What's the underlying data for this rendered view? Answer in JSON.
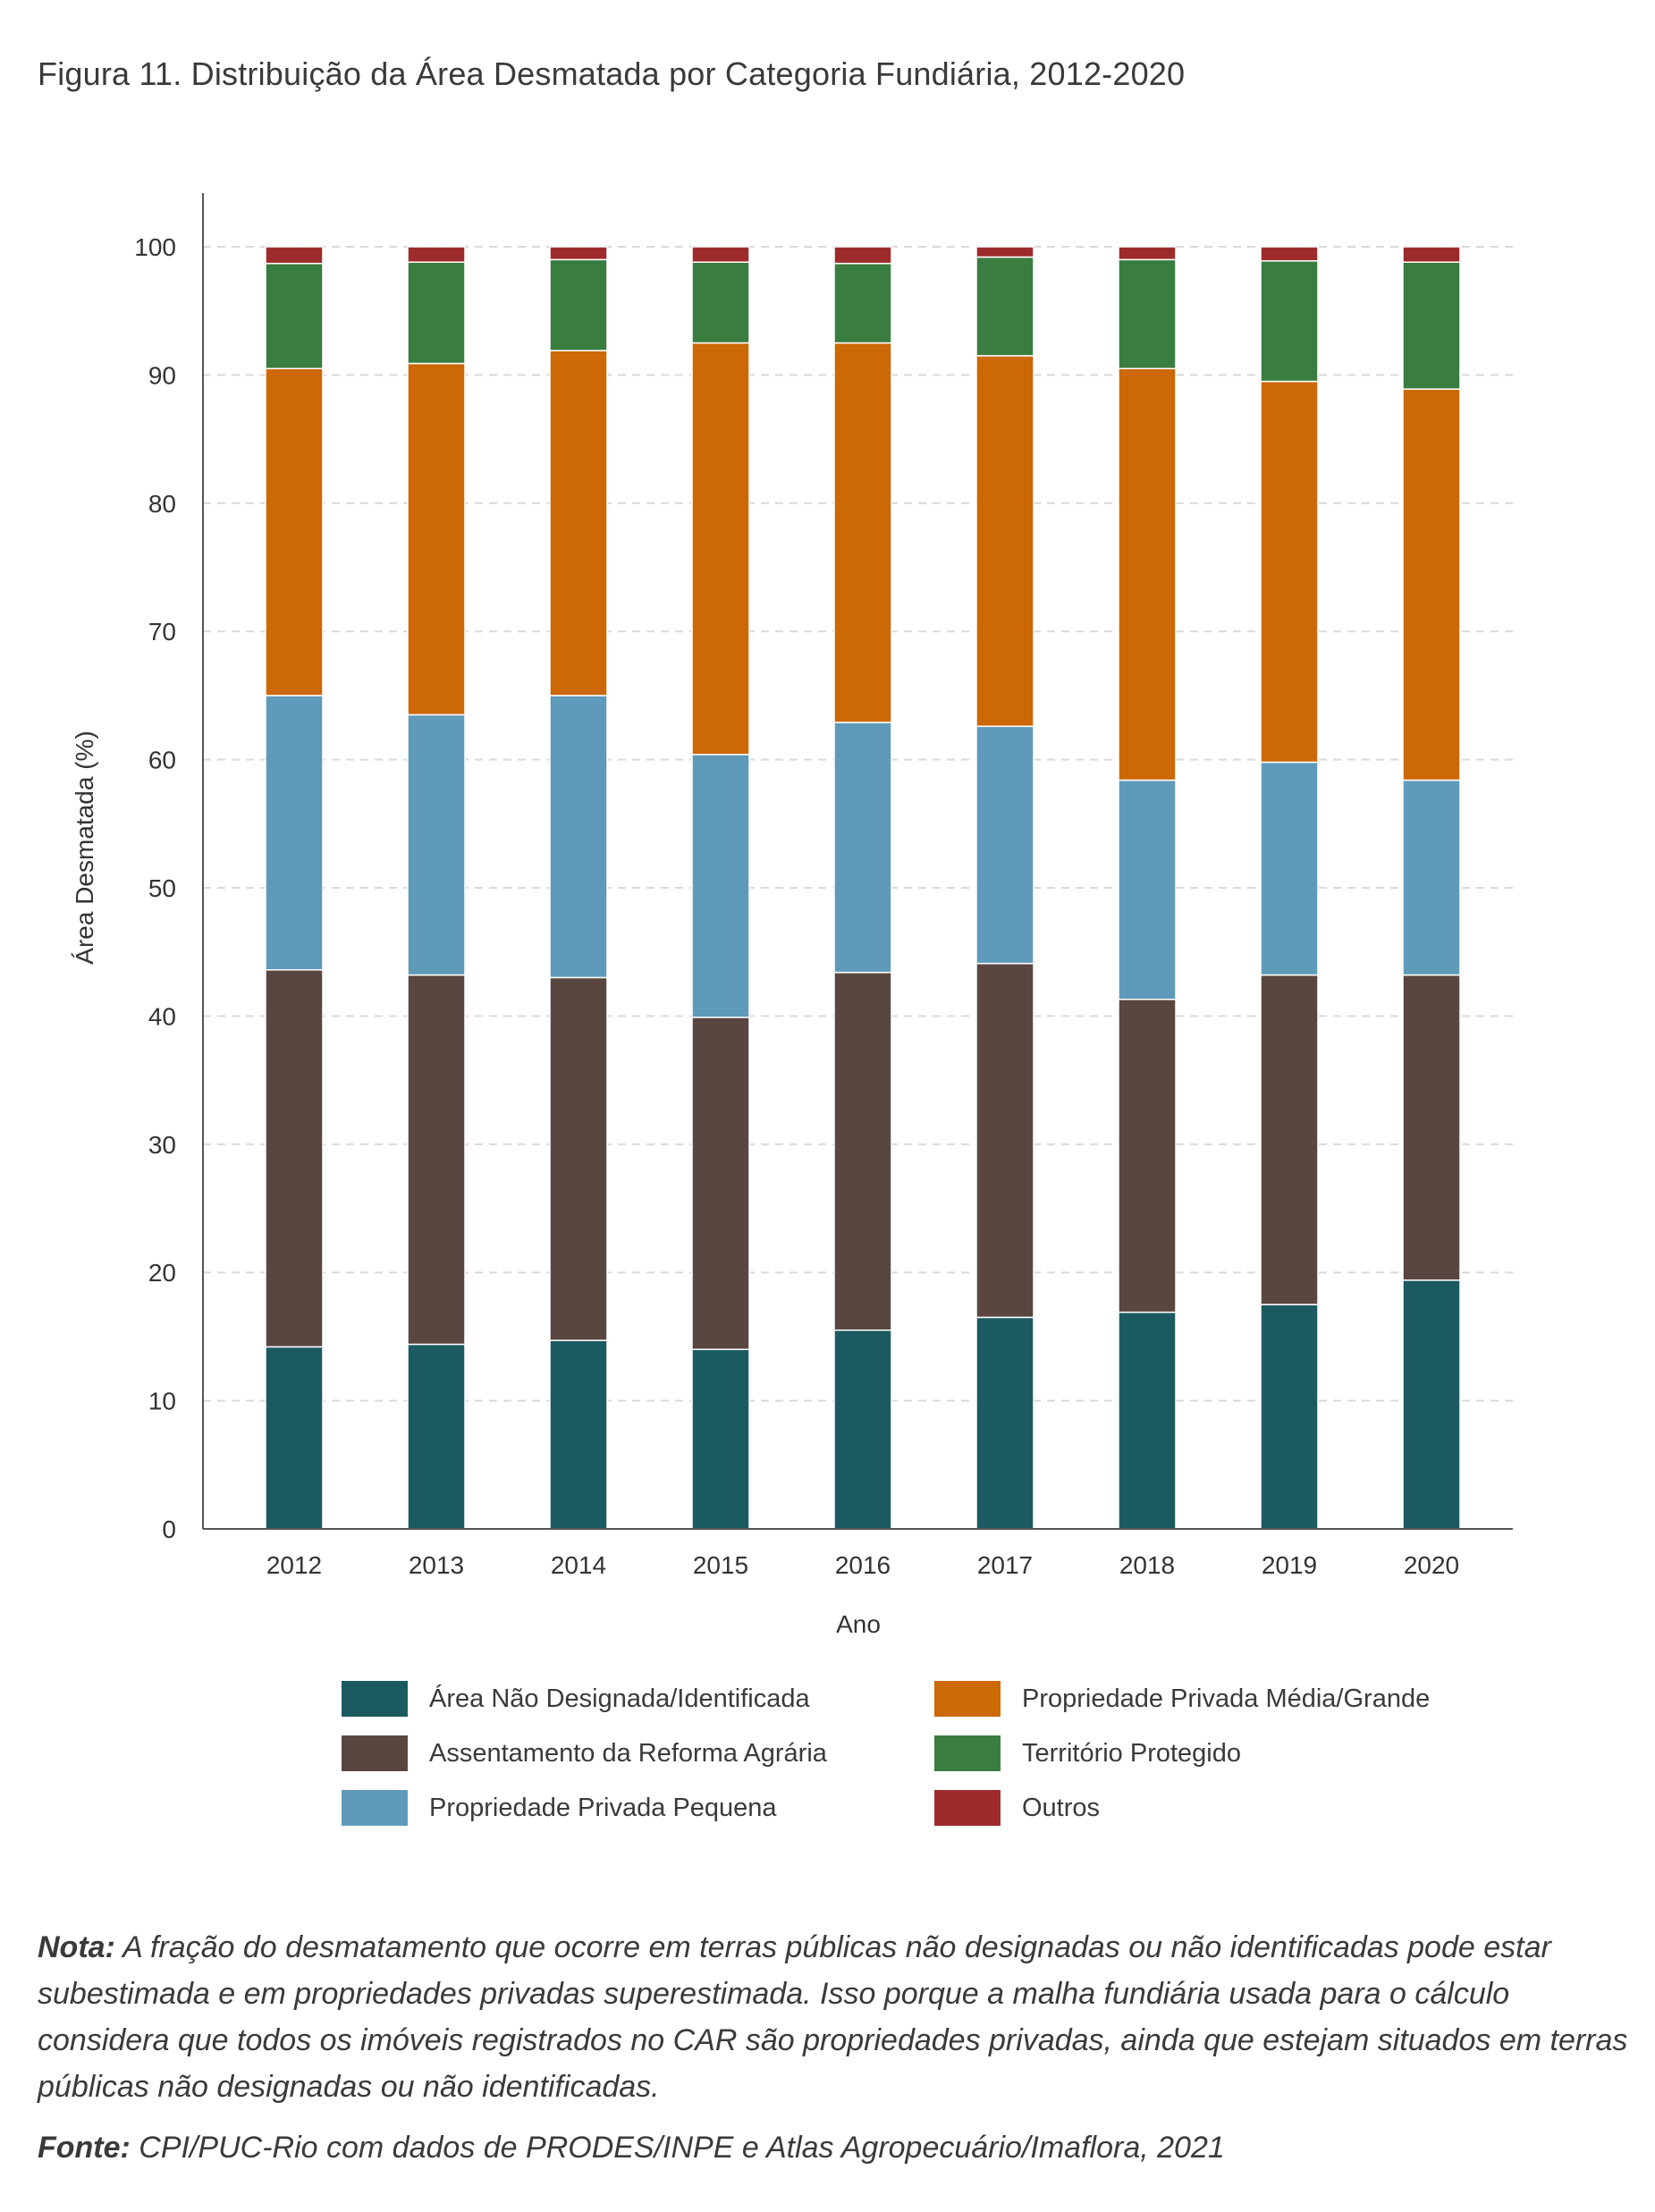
{
  "title": "Figura 11. Distribuição da Área Desmatada por Categoria Fundiária, 2012-2020",
  "chart_data": {
    "type": "bar",
    "stacked": true,
    "categories": [
      "2012",
      "2013",
      "2014",
      "2015",
      "2016",
      "2017",
      "2018",
      "2019",
      "2020"
    ],
    "xlabel": "Ano",
    "ylabel": "Área Desmatada (%)",
    "ylim": [
      0,
      100
    ],
    "yticks": [
      0,
      10,
      20,
      30,
      40,
      50,
      60,
      70,
      80,
      90,
      100
    ],
    "grid": true,
    "legend_position": "bottom",
    "series": [
      {
        "name": "Área Não Designada/Identificada",
        "color": "#1c5a62",
        "values": [
          14.2,
          14.4,
          14.7,
          14.0,
          15.5,
          16.5,
          16.9,
          17.5,
          19.4
        ]
      },
      {
        "name": "Assentamento da Reforma Agrária",
        "color": "#5a4640",
        "values": [
          29.4,
          28.8,
          28.3,
          25.9,
          27.9,
          27.6,
          24.4,
          25.7,
          23.8
        ]
      },
      {
        "name": "Propriedade Privada Pequena",
        "color": "#5f9aba",
        "values": [
          21.4,
          20.3,
          22.0,
          20.5,
          19.5,
          18.5,
          17.1,
          16.6,
          15.2
        ]
      },
      {
        "name": "Propriedade Privada Média/Grande",
        "color": "#cc6805",
        "values": [
          25.5,
          27.4,
          26.9,
          32.1,
          29.6,
          28.9,
          32.1,
          29.7,
          30.5
        ]
      },
      {
        "name": "Território Protegido",
        "color": "#3a7d40",
        "values": [
          8.2,
          7.9,
          7.1,
          6.3,
          6.2,
          7.7,
          8.5,
          9.4,
          9.9
        ]
      },
      {
        "name": "Outros",
        "color": "#9e2b2b",
        "values": [
          1.3,
          1.2,
          1.0,
          1.2,
          1.3,
          0.8,
          1.0,
          1.1,
          1.2
        ]
      }
    ]
  },
  "note": {
    "lead": "Nota:",
    "text": " A fração do desmatamento que ocorre em terras públicas não designadas ou não identificadas pode estar subestimada e em propriedades privadas superestimada. Isso porque a malha fundiária usada para o cálculo considera que todos os imóveis registrados no CAR são propriedades privadas, ainda que estejam situados em terras públicas não designadas ou não identificadas."
  },
  "source": {
    "lead": "Fonte:",
    "text": " CPI/PUC-Rio com dados de PRODES/INPE e Atlas Agropecuário/Imaflora, 2021"
  }
}
